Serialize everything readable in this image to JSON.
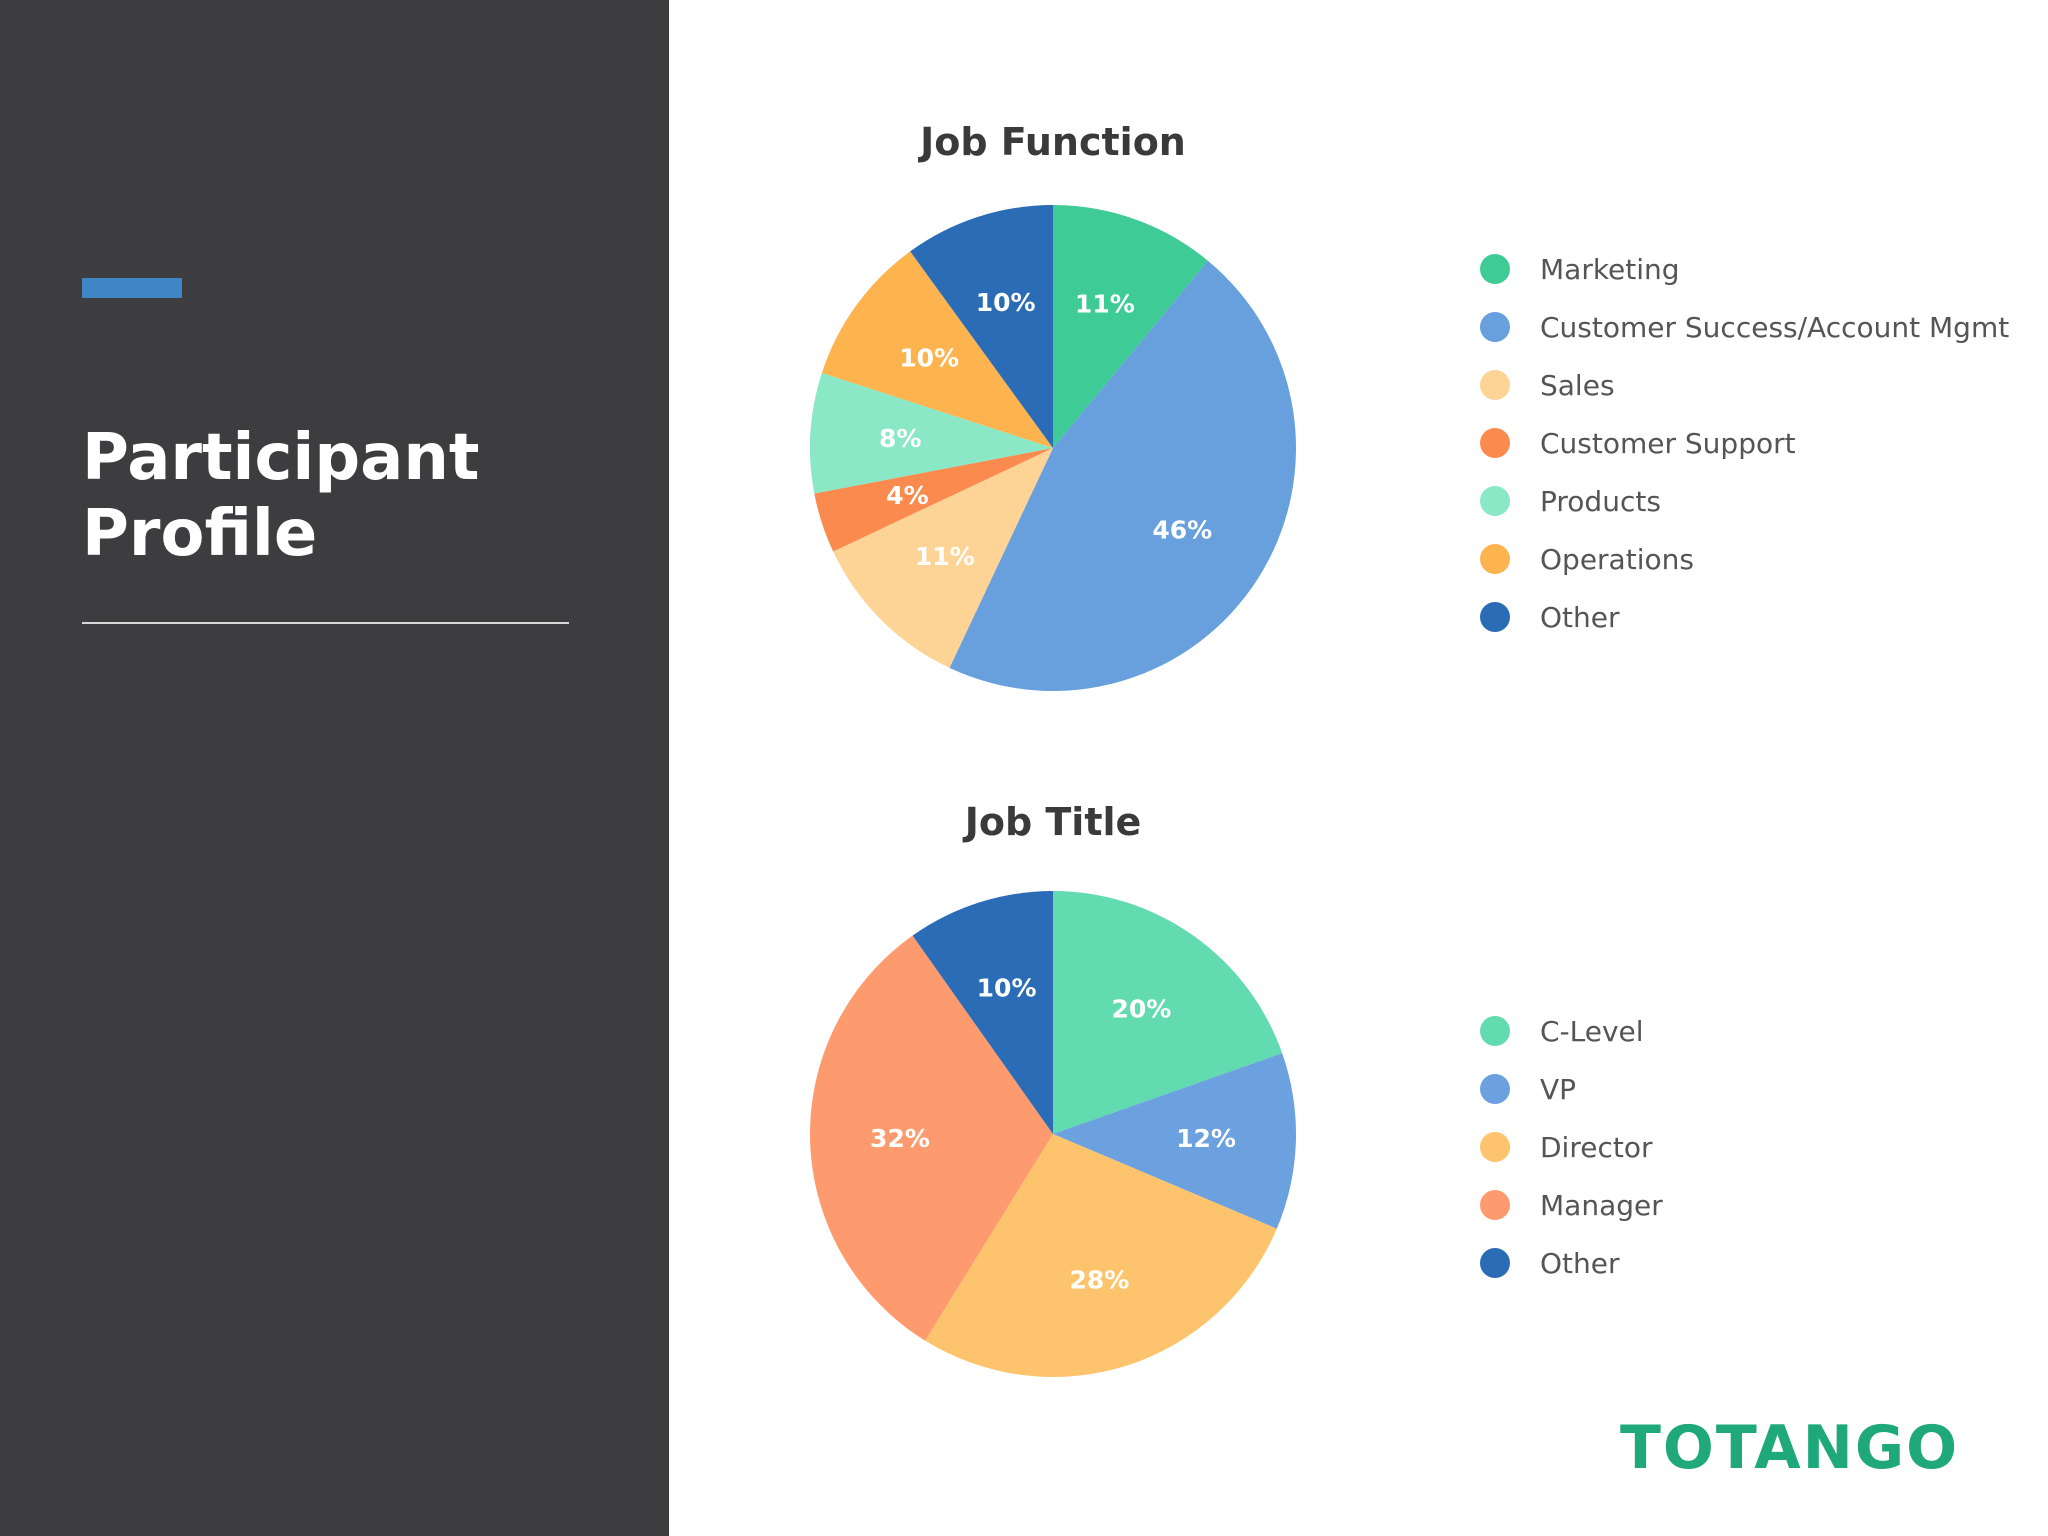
{
  "sidebar": {
    "title": "Participant\nProfile",
    "accent_color": "#3f86c7",
    "background_color": "#3d3d3f"
  },
  "brand": {
    "logo_text": "TOTANGO",
    "color": "#1fa97a"
  },
  "chart_data": [
    {
      "type": "pie",
      "title": "Job Function",
      "categories": [
        "Marketing",
        "Customer Success/Account Mgmt",
        "Sales",
        "Customer Support",
        "Products",
        "Operations",
        "Other"
      ],
      "values": [
        11,
        46,
        11,
        4,
        8,
        10,
        10
      ],
      "labels": [
        "11%",
        "46%",
        "11%",
        "4%",
        "8%",
        "10%",
        "10%"
      ],
      "colors": [
        "#3ecb96",
        "#67a0dc",
        "#fdd495",
        "#fb8a4e",
        "#8ae8c7",
        "#fdb44f",
        "#2a6cb5"
      ],
      "legend_position": "right",
      "start": "top",
      "direction": "clockwise"
    },
    {
      "type": "pie",
      "title": "Job Title",
      "categories": [
        "C-Level",
        "VP",
        "Director",
        "Manager",
        "Other"
      ],
      "values": [
        20,
        12,
        28,
        32,
        10
      ],
      "labels": [
        "20%",
        "12%",
        "28%",
        "32%",
        "10%"
      ],
      "colors": [
        "#62dbb0",
        "#6aa1de",
        "#fec46d",
        "#fe9b6e",
        "#2a6cb5"
      ],
      "legend_position": "right",
      "start": "top",
      "direction": "clockwise"
    }
  ]
}
